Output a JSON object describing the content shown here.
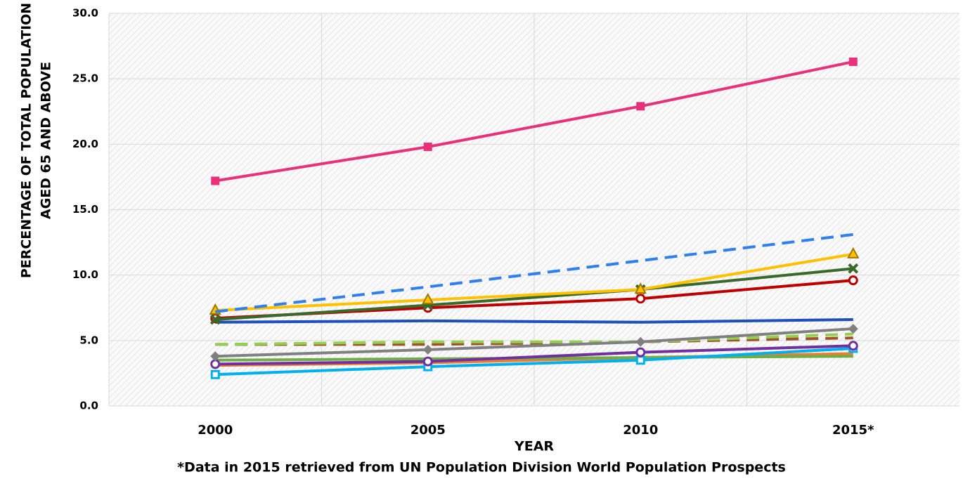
{
  "chart_data": {
    "type": "line",
    "y_label": [
      "PERCENTAGE  OF TOTAL POPULATION",
      "AGED 65 AND ABOVE"
    ],
    "x_label": "YEAR",
    "note": "*Data in 2015 retrieved from UN Population Division World Population Prospects",
    "categories": [
      "2000",
      "2005",
      "2010",
      "2015*"
    ],
    "ylim": [
      0,
      30
    ],
    "yticks": [
      {
        "value": 0,
        "label": "0.0"
      },
      {
        "value": 5,
        "label": "5.0"
      },
      {
        "value": 10,
        "label": "10.0"
      },
      {
        "value": 15,
        "label": "15.0"
      },
      {
        "value": 20,
        "label": "20.0"
      },
      {
        "value": 25,
        "label": "25.0"
      },
      {
        "value": 30,
        "label": "30.0"
      }
    ],
    "grid": true,
    "series": [
      {
        "color": "#ed7d31",
        "marker": "none",
        "dash": false,
        "values": [
          3.1,
          3.3,
          3.7,
          4.0
        ]
      },
      {
        "color": "#70ad47",
        "marker": "none",
        "dash": false,
        "values": [
          3.5,
          3.6,
          3.7,
          3.8
        ]
      },
      {
        "color": "#00b0f0",
        "marker": "open-square",
        "dash": false,
        "values": [
          2.4,
          3.0,
          3.5,
          4.4
        ]
      },
      {
        "color": "#7030a0",
        "marker": "open-circle",
        "dash": false,
        "values": [
          3.2,
          3.4,
          4.1,
          4.6
        ]
      },
      {
        "color": "#a0522d",
        "marker": "none",
        "dash": true,
        "values": [
          4.7,
          4.7,
          4.9,
          5.2
        ]
      },
      {
        "color": "#92d050",
        "marker": "none",
        "dash": true,
        "values": [
          4.7,
          4.9,
          4.9,
          5.5
        ]
      },
      {
        "color": "#808080",
        "marker": "diamond",
        "dash": false,
        "values": [
          3.8,
          4.3,
          4.9,
          5.9
        ]
      },
      {
        "color": "#1f4fbf",
        "marker": "none",
        "dash": false,
        "values": [
          6.4,
          6.5,
          6.4,
          6.6
        ]
      },
      {
        "color": "#c00000",
        "marker": "open-circle",
        "dash": false,
        "values": [
          6.7,
          7.5,
          8.2,
          9.6
        ]
      },
      {
        "color": "#3a6a2a",
        "marker": "x",
        "dash": false,
        "values": [
          6.6,
          7.7,
          8.9,
          10.5
        ]
      },
      {
        "color": "#ffc000",
        "marker": "triangle",
        "dash": false,
        "values": [
          7.3,
          8.1,
          8.9,
          11.6
        ]
      },
      {
        "color": "#2f7fef",
        "marker": "none",
        "dash": true,
        "values": [
          7.2,
          9.1,
          11.1,
          13.1
        ]
      },
      {
        "color": "#e8317a",
        "marker": "square",
        "dash": false,
        "values": [
          17.2,
          19.8,
          22.9,
          26.3
        ]
      }
    ]
  }
}
